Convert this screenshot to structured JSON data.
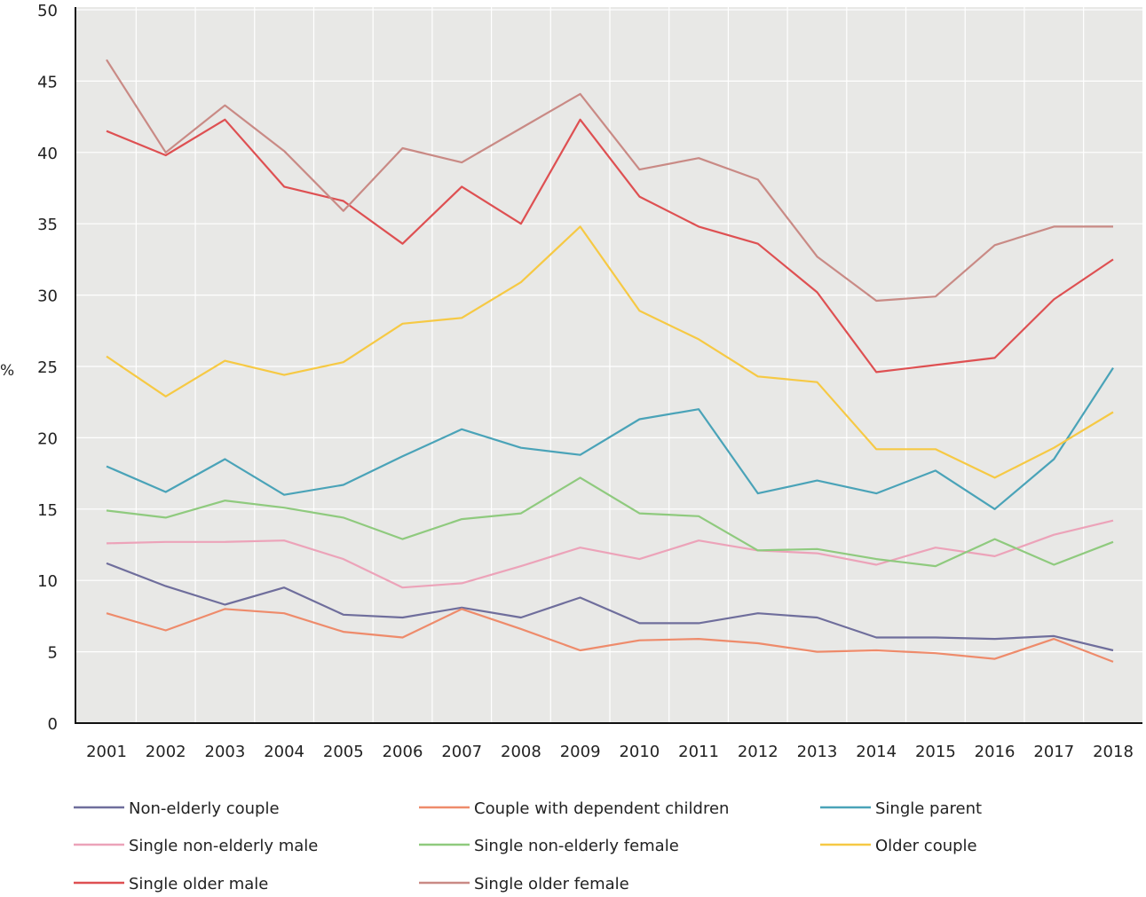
{
  "chart_data": {
    "type": "line",
    "title": "",
    "xlabel": "",
    "ylabel": "%",
    "ylim": [
      0,
      50
    ],
    "yticks": [
      0,
      5,
      10,
      15,
      20,
      25,
      30,
      35,
      40,
      45,
      50
    ],
    "grid": true,
    "legend_position": "bottom",
    "x": [
      "2001",
      "2002",
      "2003",
      "2004",
      "2005",
      "2006",
      "2007",
      "2008",
      "2009",
      "2010",
      "2011",
      "2012",
      "2013",
      "2014",
      "2015",
      "2016",
      "2017",
      "2018"
    ],
    "series": [
      {
        "name": "Non-elderly couple",
        "color": "#6f6e9c",
        "values": [
          11.2,
          9.6,
          8.3,
          9.5,
          7.6,
          7.4,
          8.1,
          7.4,
          8.8,
          7.0,
          7.0,
          7.7,
          7.4,
          6.0,
          6.0,
          5.9,
          6.1,
          5.1
        ]
      },
      {
        "name": "Couple with dependent  children",
        "color": "#ee8b6b",
        "values": [
          7.7,
          6.5,
          8.0,
          7.7,
          6.4,
          6.0,
          8.0,
          6.6,
          5.1,
          5.8,
          5.9,
          5.6,
          5.0,
          5.1,
          4.9,
          4.5,
          5.9,
          4.3
        ]
      },
      {
        "name": "Single parent",
        "color": "#4aa3b8",
        "values": [
          18.0,
          16.2,
          18.5,
          16.0,
          16.7,
          18.7,
          20.6,
          19.3,
          18.8,
          21.3,
          22.0,
          16.1,
          17.0,
          16.1,
          17.7,
          15.0,
          18.5,
          24.9
        ]
      },
      {
        "name": "Single non-elderly male",
        "color": "#eca3b9",
        "values": [
          12.6,
          12.7,
          12.7,
          12.8,
          11.5,
          9.5,
          9.8,
          11.0,
          12.3,
          11.5,
          12.8,
          12.1,
          11.9,
          11.1,
          12.3,
          11.7,
          13.2,
          14.2
        ]
      },
      {
        "name": "Single non-elderly female",
        "color": "#8fca7e",
        "values": [
          14.9,
          14.4,
          15.6,
          15.1,
          14.4,
          12.9,
          14.3,
          14.7,
          17.2,
          14.7,
          14.5,
          12.1,
          12.2,
          11.5,
          11.0,
          12.9,
          11.1,
          12.7
        ]
      },
      {
        "name": "Older couple",
        "color": "#f6c944",
        "values": [
          25.7,
          22.9,
          25.4,
          24.4,
          25.3,
          28.0,
          28.4,
          30.9,
          34.8,
          28.9,
          26.9,
          24.3,
          23.9,
          19.2,
          19.2,
          17.2,
          19.3,
          21.8
        ]
      },
      {
        "name": "Single older male",
        "color": "#de5052",
        "values": [
          41.5,
          39.8,
          42.3,
          37.6,
          36.6,
          33.6,
          37.6,
          35.0,
          42.3,
          36.9,
          34.8,
          33.6,
          30.2,
          24.6,
          25.1,
          25.6,
          29.7,
          32.5
        ]
      },
      {
        "name": "Single older female",
        "color": "#c98a85",
        "values": [
          46.5,
          40.0,
          43.3,
          40.1,
          35.9,
          40.3,
          39.3,
          41.7,
          44.1,
          38.8,
          39.6,
          38.1,
          32.7,
          29.6,
          29.9,
          33.5,
          34.8,
          34.8
        ]
      }
    ]
  }
}
